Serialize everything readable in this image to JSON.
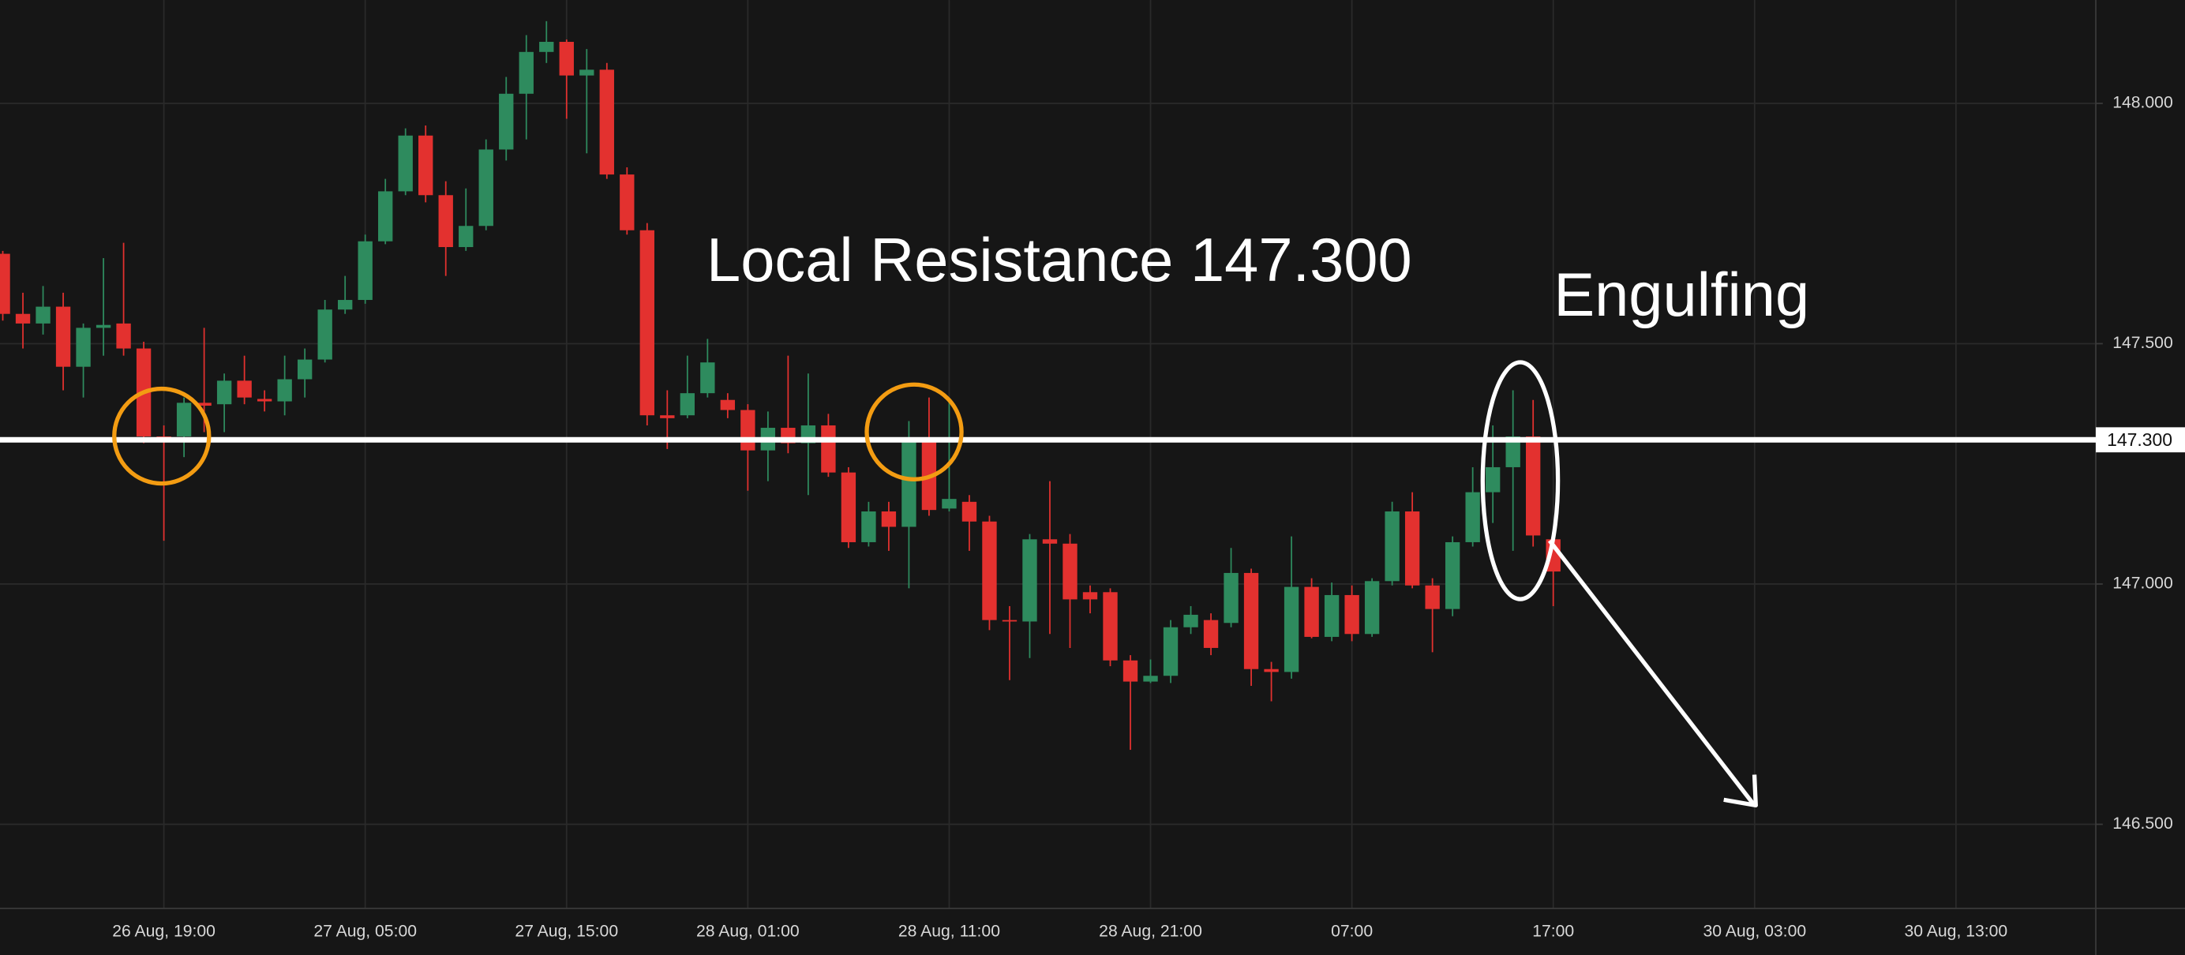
{
  "chart_data": {
    "type": "candlestick",
    "categories": [
      null,
      null,
      null,
      null,
      null,
      null,
      null,
      null,
      "26 Aug, 19:00",
      null,
      null,
      null,
      null,
      null,
      null,
      null,
      null,
      null,
      "27 Aug, 05:00",
      null,
      null,
      null,
      null,
      null,
      null,
      null,
      null,
      null,
      "27 Aug, 15:00",
      null,
      null,
      null,
      null,
      null,
      null,
      null,
      null,
      "28 Aug, 01:00",
      null,
      null,
      null,
      null,
      null,
      null,
      null,
      null,
      null,
      "28 Aug, 11:00",
      null,
      null,
      null,
      null,
      null,
      null,
      null,
      null,
      null,
      "28 Aug, 21:00",
      null,
      null,
      null,
      null,
      null,
      null,
      null,
      null,
      null,
      "07:00",
      null,
      null,
      null,
      null,
      null,
      null,
      null,
      null,
      null,
      "17:00",
      null,
      null,
      null,
      null,
      null,
      null,
      null,
      null,
      null,
      "30 Aug, 03:00",
      null,
      null,
      null,
      null,
      null,
      null,
      null,
      null,
      null,
      "30 Aug, 13:00",
      null,
      null,
      null,
      null,
      null,
      null
    ],
    "open": [
      147.687,
      147.562,
      147.542,
      147.577,
      147.452,
      147.533,
      147.542,
      147.49,
      147.307,
      147.307,
      147.377,
      147.374,
      147.423,
      147.385,
      147.38,
      147.426,
      147.467,
      147.571,
      147.591,
      147.713,
      147.817,
      147.933,
      147.809,
      147.701,
      147.745,
      147.904,
      148.02,
      148.107,
      148.128,
      148.058,
      148.07,
      147.852,
      147.736,
      147.351,
      147.351,
      147.397,
      147.383,
      147.362,
      147.278,
      147.325,
      147.293,
      147.33,
      147.232,
      147.087,
      147.151,
      147.119,
      147.296,
      147.157,
      147.171,
      147.13,
      146.925,
      146.922,
      147.093,
      147.084,
      146.983,
      146.983,
      146.841,
      146.797,
      146.809,
      146.91,
      146.925,
      146.919,
      147.023,
      146.823,
      146.817,
      146.994,
      146.89,
      146.977,
      146.896,
      147.006,
      147.151,
      146.997,
      146.948,
      147.087,
      147.191,
      147.243,
      147.307,
      147.093,
      null,
      null,
      null,
      null,
      null,
      null,
      null,
      null,
      null,
      null,
      null,
      null,
      null,
      null,
      null,
      null,
      null,
      null,
      null,
      null,
      null,
      null,
      null,
      null,
      null,
      null
    ],
    "high": [
      147.693,
      147.606,
      147.62,
      147.606,
      147.542,
      147.678,
      147.71,
      147.504,
      147.33,
      147.388,
      147.533,
      147.438,
      147.475,
      147.403,
      147.475,
      147.49,
      147.591,
      147.641,
      147.727,
      147.843,
      147.948,
      147.954,
      147.838,
      147.823,
      147.925,
      148.055,
      148.142,
      148.171,
      148.133,
      148.113,
      148.084,
      147.867,
      147.751,
      147.403,
      147.475,
      147.51,
      147.397,
      147.374,
      147.359,
      147.475,
      147.438,
      147.354,
      147.243,
      147.171,
      147.171,
      147.339,
      147.388,
      147.38,
      147.185,
      147.142,
      146.954,
      147.104,
      147.214,
      147.104,
      146.997,
      146.991,
      146.852,
      146.843,
      146.925,
      146.954,
      146.939,
      147.075,
      147.032,
      146.838,
      147.099,
      147.012,
      147.003,
      146.997,
      147.012,
      147.171,
      147.191,
      147.012,
      147.099,
      147.243,
      147.33,
      147.403,
      147.383,
      147.099,
      null,
      null,
      null,
      null,
      null,
      null,
      null,
      null,
      null,
      null,
      null,
      null,
      null,
      null,
      null,
      null,
      null,
      null,
      null,
      null,
      null,
      null,
      null,
      null,
      null,
      null
    ],
    "low": [
      147.548,
      147.49,
      147.519,
      147.403,
      147.388,
      147.475,
      147.475,
      147.293,
      147.09,
      147.264,
      147.316,
      147.316,
      147.374,
      147.359,
      147.351,
      147.388,
      147.461,
      147.562,
      147.583,
      147.707,
      147.809,
      147.794,
      147.641,
      147.693,
      147.736,
      147.881,
      147.925,
      148.084,
      147.968,
      147.896,
      147.843,
      147.727,
      147.33,
      147.281,
      147.345,
      147.388,
      147.345,
      147.194,
      147.214,
      147.272,
      147.185,
      147.223,
      147.075,
      147.078,
      147.069,
      146.991,
      147.142,
      147.151,
      147.069,
      146.904,
      146.8,
      146.846,
      146.896,
      146.867,
      146.939,
      146.829,
      146.655,
      146.794,
      146.794,
      146.896,
      146.852,
      146.91,
      146.788,
      146.756,
      146.803,
      146.887,
      146.881,
      146.881,
      146.89,
      146.997,
      146.991,
      146.858,
      146.933,
      147.078,
      147.127,
      147.069,
      147.078,
      146.954,
      null,
      null,
      null,
      null,
      null,
      null,
      null,
      null,
      null,
      null,
      null,
      null,
      null,
      null,
      null,
      null,
      null,
      null,
      null,
      null,
      null,
      null,
      null,
      null,
      null,
      null
    ],
    "close": [
      147.562,
      147.542,
      147.577,
      147.452,
      147.533,
      147.539,
      147.49,
      147.307,
      147.301,
      147.377,
      147.371,
      147.423,
      147.388,
      147.38,
      147.426,
      147.467,
      147.571,
      147.591,
      147.713,
      147.817,
      147.933,
      147.809,
      147.701,
      147.745,
      147.904,
      148.02,
      148.107,
      148.128,
      148.058,
      148.07,
      147.852,
      147.736,
      147.351,
      147.345,
      147.397,
      147.461,
      147.362,
      147.278,
      147.325,
      147.293,
      147.33,
      147.232,
      147.087,
      147.151,
      147.119,
      147.296,
      147.154,
      147.177,
      147.13,
      146.925,
      146.922,
      147.093,
      147.084,
      146.968,
      146.968,
      146.841,
      146.797,
      146.809,
      146.91,
      146.936,
      146.867,
      147.023,
      146.823,
      146.817,
      146.994,
      146.89,
      146.977,
      146.896,
      147.006,
      147.151,
      146.997,
      146.948,
      147.087,
      147.191,
      147.243,
      147.307,
      147.101,
      147.026,
      null,
      null,
      null,
      null,
      null,
      null,
      null,
      null,
      null,
      null,
      null,
      null,
      null,
      null,
      null,
      null,
      null,
      null,
      null,
      null,
      null,
      null,
      null,
      null,
      null,
      null
    ],
    "up_color": "#2e8b5e",
    "down_color": "#e3312f",
    "ylim": [
      146.325,
      148.215
    ],
    "yticks": [
      {
        "value": 146.5,
        "label": "146.500"
      },
      {
        "value": 147,
        "label": "147.000"
      },
      {
        "value": 147.5,
        "label": "147.500"
      },
      {
        "value": 148,
        "label": "148.000"
      }
    ],
    "grid": true,
    "hline": {
      "value": 147.3,
      "label": "147.300"
    },
    "annotations": [
      "Local Resistance 147.300",
      "Engulfing"
    ]
  }
}
